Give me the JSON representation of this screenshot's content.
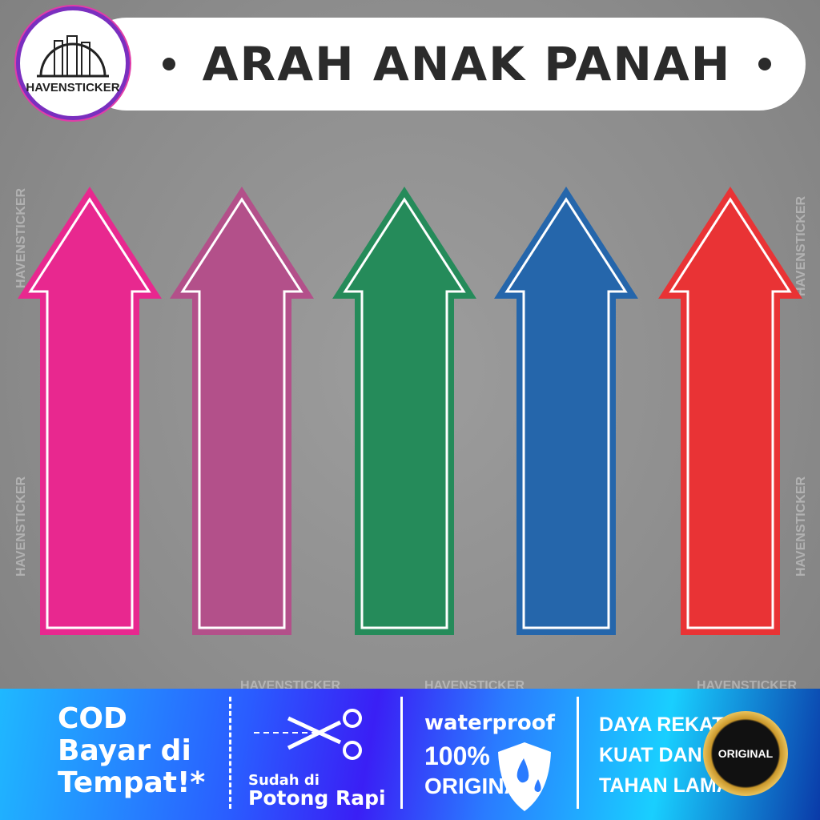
{
  "header": {
    "title": "ARAH ANAK PANAH",
    "logo_text": "HAVENSTICKER"
  },
  "watermark": "HAVENSTICKER",
  "arrows": [
    {
      "color": "#e8288f",
      "name": "pink"
    },
    {
      "color": "#b3508a",
      "name": "purple"
    },
    {
      "color": "#258b5a",
      "name": "green"
    },
    {
      "color": "#2566ab",
      "name": "blue"
    },
    {
      "color": "#e93335",
      "name": "red"
    }
  ],
  "banner": {
    "cod": [
      "COD",
      "Bayar di",
      "Tempat!*"
    ],
    "cut": [
      "Sudah di",
      "Potong Rapi"
    ],
    "waterproof": [
      "waterproof",
      "100%",
      "ORIGINAL"
    ],
    "adhesive": [
      "DAYA REKAT",
      "KUAT DAN",
      "TAHAN LAMA"
    ],
    "badge": "ORIGINAL"
  }
}
